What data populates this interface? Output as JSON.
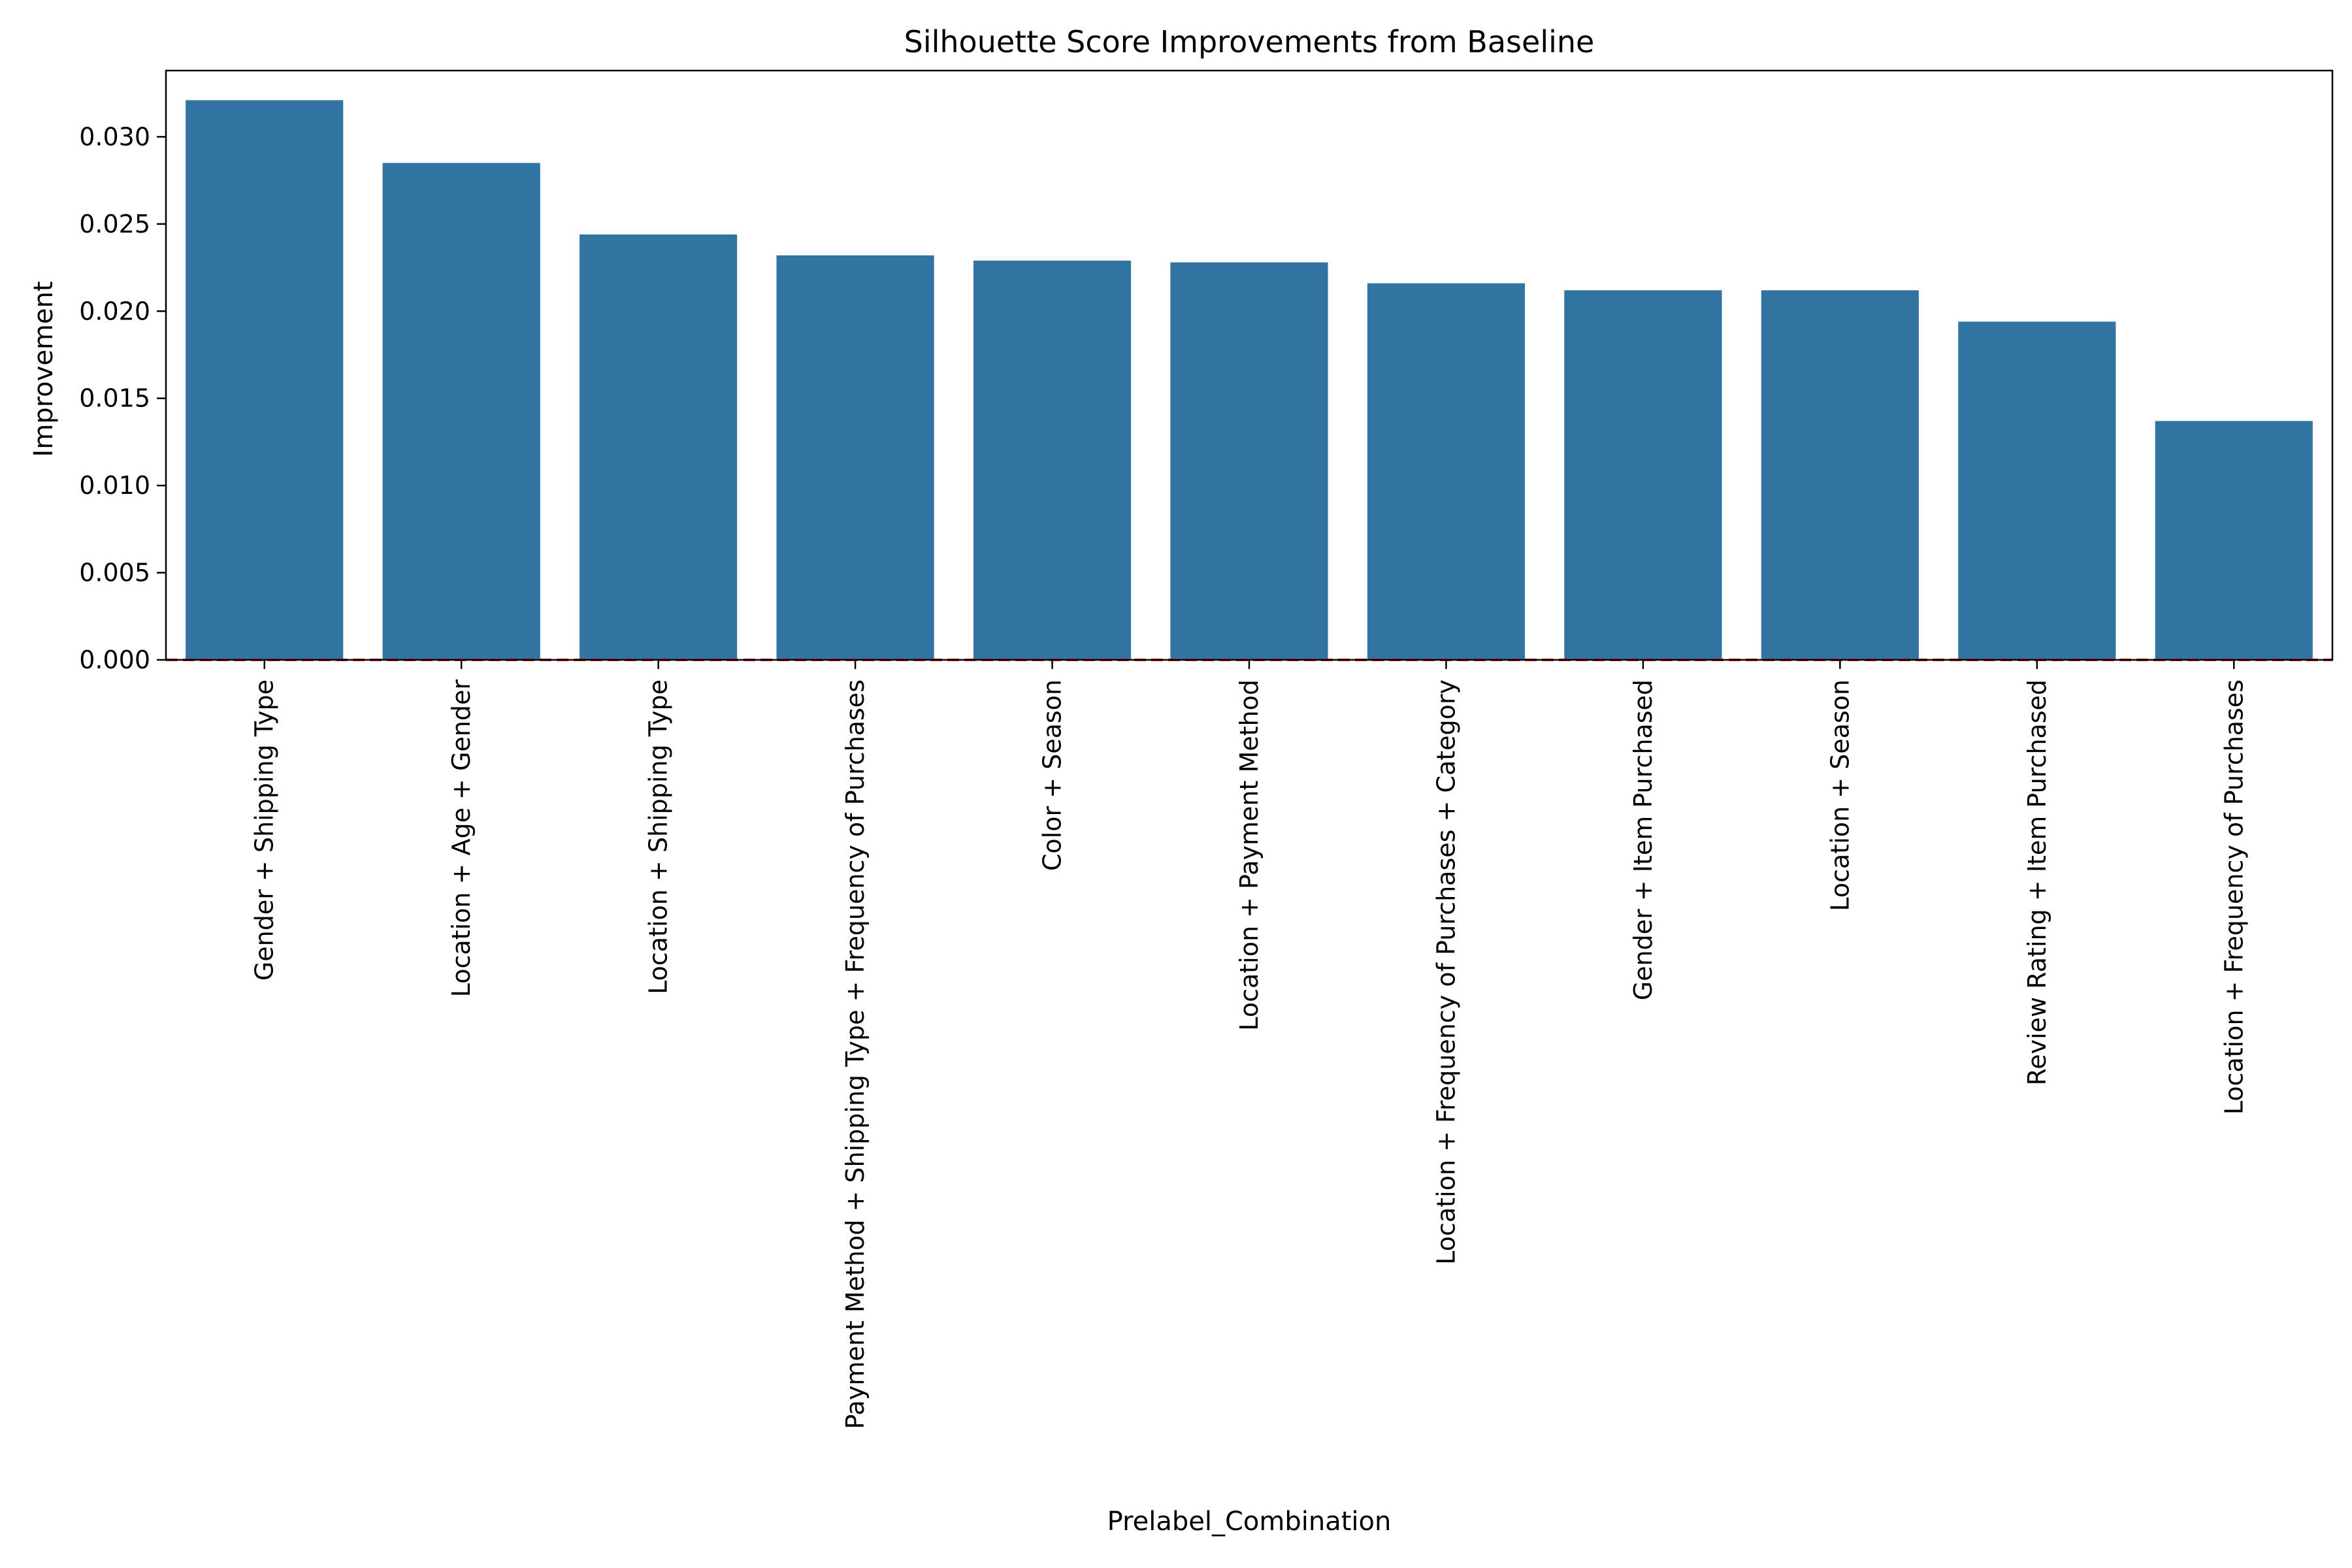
{
  "chart_data": {
    "type": "bar",
    "title": "Silhouette Score Improvements from Baseline",
    "xlabel": "Prelabel_Combination",
    "ylabel": "Improvement",
    "categories": [
      "Gender + Shipping Type",
      "Location + Age + Gender",
      "Location + Shipping Type",
      "Payment Method + Shipping Type + Frequency of Purchases",
      "Color + Season",
      "Location + Payment Method",
      "Location + Frequency of Purchases + Category",
      "Gender + Item Purchased",
      "Location + Season",
      "Review Rating + Item Purchased",
      "Location + Frequency of Purchases"
    ],
    "values": [
      0.0321,
      0.0285,
      0.0244,
      0.0232,
      0.0229,
      0.0228,
      0.0216,
      0.0212,
      0.0212,
      0.0194,
      0.0137
    ],
    "ylim": [
      0,
      0.0338
    ],
    "yticks": [
      "0.000",
      "0.005",
      "0.010",
      "0.015",
      "0.020",
      "0.025",
      "0.030"
    ],
    "reference_line": {
      "y": 0,
      "style": "dashed",
      "color": "#d62728"
    },
    "grid": false,
    "bar_color": "#3274a1"
  }
}
